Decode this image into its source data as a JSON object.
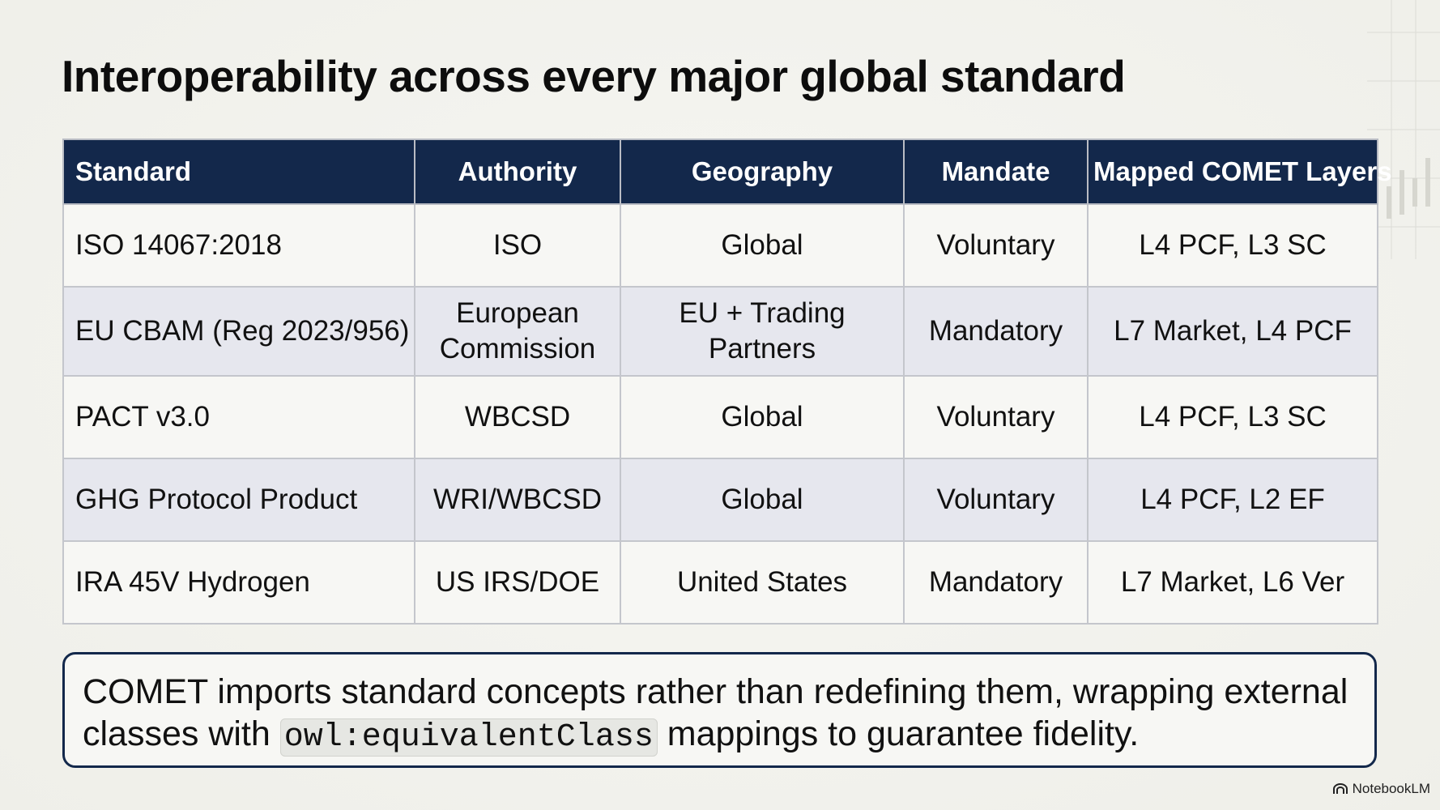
{
  "title": "Interoperability across every major global standard",
  "table": {
    "headers": [
      "Standard",
      "Authority",
      "Geography",
      "Mandate",
      "Mapped COMET Layers"
    ],
    "rows": [
      [
        "ISO 14067:2018",
        "ISO",
        "Global",
        "Voluntary",
        "L4 PCF, L3 SC"
      ],
      [
        "EU CBAM (Reg 2023/956)",
        "European\nCommission",
        "EU + Trading\nPartners",
        "Mandatory",
        "L7 Market, L4 PCF"
      ],
      [
        "PACT v3.0",
        "WBCSD",
        "Global",
        "Voluntary",
        "L4 PCF, L3 SC"
      ],
      [
        "GHG Protocol Product",
        "WRI/WBCSD",
        "Global",
        "Voluntary",
        "L4 PCF, L2 EF"
      ],
      [
        "IRA 45V Hydrogen",
        "US IRS/DOE",
        "United States",
        "Mandatory",
        "L7 Market, L6 Ver"
      ]
    ]
  },
  "callout": {
    "text_before": "COMET imports standard concepts rather than redefining them, wrapping external classes with ",
    "code": "owl:equivalentClass",
    "text_after": " mappings to guarantee fidelity."
  },
  "brand": {
    "label": "NotebookLM",
    "icon": "notebooklm-logo-icon"
  },
  "colors": {
    "header_bg": "#13284b",
    "row_alt_bg": "#e6e7ee",
    "callout_border": "#13284b"
  }
}
